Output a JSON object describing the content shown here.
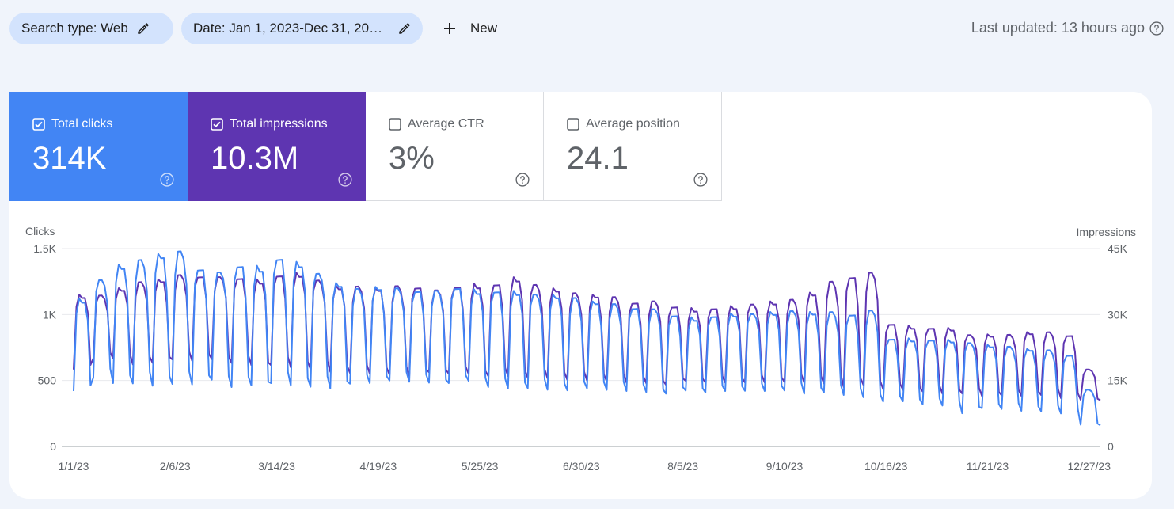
{
  "filters": {
    "search_type": "Search type: Web",
    "date": "Date: Jan 1, 2023-Dec 31, 20…",
    "new_label": "New"
  },
  "last_updated": "Last updated: 13 hours ago",
  "metrics": [
    {
      "label": "Total clicks",
      "value": "314K",
      "checked": true,
      "color": "#4285f4"
    },
    {
      "label": "Total impressions",
      "value": "10.3M",
      "checked": true,
      "color": "#5e35b1"
    },
    {
      "label": "Average CTR",
      "value": "3%",
      "checked": false
    },
    {
      "label": "Average position",
      "value": "24.1",
      "checked": false
    }
  ],
  "colors": {
    "clicks": "#4285f4",
    "impressions": "#5e35b1",
    "chip_bg": "#d3e3fd",
    "page_bg": "#f0f4fb"
  },
  "chart_data": {
    "type": "line",
    "y_left_label": "Clicks",
    "y_right_label": "Impressions",
    "y_left_ticks": [
      "0",
      "500",
      "1K",
      "1.5K"
    ],
    "y_left_range": [
      0,
      1500
    ],
    "y_right_ticks": [
      "0",
      "15K",
      "30K",
      "45K"
    ],
    "y_right_range": [
      0,
      45000
    ],
    "x_ticks": [
      "1/1/23",
      "2/6/23",
      "3/14/23",
      "4/19/23",
      "5/25/23",
      "6/30/23",
      "8/5/23",
      "9/10/23",
      "10/16/23",
      "11/21/23",
      "12/27/23"
    ],
    "x_range": [
      "2023-01-01",
      "2023-12-31"
    ],
    "grid": true,
    "series": [
      {
        "name": "Clicks",
        "axis": "left",
        "weekly_peak": [
          1120,
          1270,
          1380,
          1420,
          1460,
          1480,
          1360,
          1320,
          1380,
          1370,
          1430,
          1400,
          1320,
          1240,
          1200,
          1210,
          1200,
          1190,
          1180,
          1210,
          1190,
          1180,
          1180,
          1160,
          1150,
          1130,
          1100,
          1080,
          1060,
          1040,
          1000,
          980,
          990,
          1010,
          1010,
          1020,
          1030,
          1020,
          1020,
          1010,
          1030,
          820,
          820,
          810,
          810,
          790,
          770,
          760,
          740,
          730,
          700,
          430
        ],
        "weekly_low": [
          420,
          520,
          480,
          470,
          460,
          460,
          470,
          490,
          450,
          440,
          480,
          460,
          450,
          440,
          470,
          480,
          490,
          490,
          470,
          480,
          480,
          450,
          440,
          440,
          430,
          420,
          440,
          420,
          420,
          400,
          400,
          410,
          410,
          420,
          420,
          420,
          420,
          400,
          400,
          390,
          360,
          340,
          330,
          320,
          310,
          250,
          290,
          280,
          270,
          260,
          250,
          160
        ]
      },
      {
        "name": "Impressions",
        "axis": "right",
        "weekly_peak": [
          34500,
          34500,
          36000,
          37500,
          38000,
          39000,
          39000,
          38500,
          38500,
          38000,
          39000,
          39500,
          38000,
          36500,
          36500,
          36000,
          36500,
          36500,
          35500,
          36500,
          37000,
          37000,
          38500,
          37000,
          36000,
          35000,
          34500,
          34000,
          33000,
          33000,
          32000,
          31500,
          31500,
          32000,
          32500,
          33000,
          33500,
          35000,
          37500,
          39000,
          39500,
          28000,
          27500,
          27000,
          27000,
          25500,
          25500,
          25500,
          26000,
          26000,
          25500,
          17500
        ],
        "weekly_low": [
          17500,
          20000,
          20000,
          18500,
          19000,
          19500,
          19500,
          19500,
          19000,
          18000,
          18500,
          18000,
          17500,
          17000,
          16500,
          16500,
          16000,
          16000,
          16500,
          16500,
          16000,
          16000,
          16000,
          15500,
          15500,
          15000,
          15000,
          14500,
          14500,
          14000,
          14000,
          14500,
          14500,
          14500,
          14500,
          14500,
          14500,
          14500,
          14000,
          13500,
          13500,
          13000,
          12500,
          12500,
          12000,
          12000,
          11500,
          11500,
          11500,
          11500,
          11000,
          10500
        ]
      }
    ]
  }
}
